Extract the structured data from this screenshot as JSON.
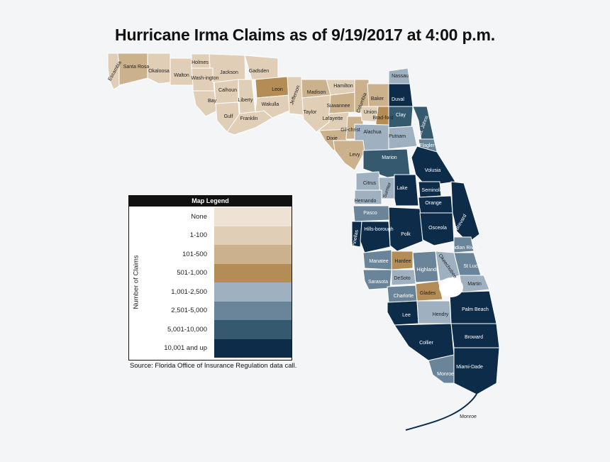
{
  "title": "Hurricane Irma Claims as of 9/19/2017 at 4:00 p.m.",
  "legend": {
    "heading": "Map Legend",
    "axis_label": "Number of Claims",
    "items": [
      {
        "label": "None",
        "color": "#ede2d3"
      },
      {
        "label": "1-100",
        "color": "#e0cfb6"
      },
      {
        "label": "101-500",
        "color": "#ccb28c"
      },
      {
        "label": "501-1,000",
        "color": "#b38c56"
      },
      {
        "label": "1,001-2,500",
        "color": "#9fb1c1"
      },
      {
        "label": "2,501-5,000",
        "color": "#6a8599"
      },
      {
        "label": "5,001-10,000",
        "color": "#355a70"
      },
      {
        "label": "10,001 and up",
        "color": "#0d2c4a"
      }
    ]
  },
  "source": "Source: Florida Office of Insurance Regulation data call.",
  "counties": [
    {
      "name": "Escambia",
      "category": "1-100"
    },
    {
      "name": "Santa Rosa",
      "category": "101-500"
    },
    {
      "name": "Okaloosa",
      "category": "1-100"
    },
    {
      "name": "Walton",
      "category": "1-100"
    },
    {
      "name": "Holmes",
      "category": "1-100"
    },
    {
      "name": "Wash-ington",
      "category": "1-100"
    },
    {
      "name": "Jackson",
      "category": "1-100"
    },
    {
      "name": "Bay",
      "category": "1-100"
    },
    {
      "name": "Calhoun",
      "category": "1-100"
    },
    {
      "name": "Gulf",
      "category": "1-100"
    },
    {
      "name": "Liberty",
      "category": "1-100"
    },
    {
      "name": "Franklin",
      "category": "1-100"
    },
    {
      "name": "Gadsden",
      "category": "1-100"
    },
    {
      "name": "Leon",
      "category": "501-1,000"
    },
    {
      "name": "Wakulla",
      "category": "1-100"
    },
    {
      "name": "Jefferson",
      "category": "1-100"
    },
    {
      "name": "Madison",
      "category": "101-500"
    },
    {
      "name": "Taylor",
      "category": "1-100"
    },
    {
      "name": "Hamilton",
      "category": "1-100"
    },
    {
      "name": "Suwannee",
      "category": "101-500"
    },
    {
      "name": "Lafayette",
      "category": "1-100"
    },
    {
      "name": "Dixie",
      "category": "101-500"
    },
    {
      "name": "Columbia",
      "category": "101-500"
    },
    {
      "name": "Gil-christ",
      "category": "101-500"
    },
    {
      "name": "Baker",
      "category": "101-500"
    },
    {
      "name": "Union",
      "category": "1-100"
    },
    {
      "name": "Brad-ford",
      "category": "501-1,000"
    },
    {
      "name": "Alachua",
      "category": "1,001-2,500"
    },
    {
      "name": "Levy",
      "category": "101-500"
    },
    {
      "name": "Nassau",
      "category": "1,001-2,500"
    },
    {
      "name": "Duval",
      "category": "10,001 and up"
    },
    {
      "name": "Clay",
      "category": "5,001-10,000"
    },
    {
      "name": "St. Johns",
      "category": "5,001-10,000"
    },
    {
      "name": "Putnam",
      "category": "1,001-2,500"
    },
    {
      "name": "Flagler",
      "category": "2,501-5,000"
    },
    {
      "name": "Marion",
      "category": "5,001-10,000"
    },
    {
      "name": "Volusia",
      "category": "10,001 and up"
    },
    {
      "name": "Citrus",
      "category": "1,001-2,500"
    },
    {
      "name": "Sumter",
      "category": "1,001-2,500"
    },
    {
      "name": "Lake",
      "category": "10,001 and up"
    },
    {
      "name": "Seminole",
      "category": "10,001 and up"
    },
    {
      "name": "Hernando",
      "category": "1,001-2,500"
    },
    {
      "name": "Orange",
      "category": "10,001 and up"
    },
    {
      "name": "Brevard",
      "category": "10,001 and up"
    },
    {
      "name": "Pasco",
      "category": "2,501-5,000"
    },
    {
      "name": "Pinellas",
      "category": "10,001 and up"
    },
    {
      "name": "Hills-borough",
      "category": "10,001 and up"
    },
    {
      "name": "Polk",
      "category": "10,001 and up"
    },
    {
      "name": "Osceola",
      "category": "10,001 and up"
    },
    {
      "name": "Indian River",
      "category": "2,501-5,000"
    },
    {
      "name": "Manatee",
      "category": "2,501-5,000"
    },
    {
      "name": "Hardee",
      "category": "501-1,000"
    },
    {
      "name": "Highlands",
      "category": "2,501-5,000"
    },
    {
      "name": "Okeechobee",
      "category": "1,001-2,500"
    },
    {
      "name": "St Lucie",
      "category": "2,501-5,000"
    },
    {
      "name": "Sarasota",
      "category": "2,501-5,000"
    },
    {
      "name": "DeSoto",
      "category": "1,001-2,500"
    },
    {
      "name": "Martin",
      "category": "1,001-2,500"
    },
    {
      "name": "Charlotte",
      "category": "2,501-5,000"
    },
    {
      "name": "Glades",
      "category": "501-1,000"
    },
    {
      "name": "Lee",
      "category": "10,001 and up"
    },
    {
      "name": "Hendry",
      "category": "1,001-2,500"
    },
    {
      "name": "Palm Beach",
      "category": "10,001 and up"
    },
    {
      "name": "Broward",
      "category": "10,001 and up"
    },
    {
      "name": "Collier",
      "category": "10,001 and up"
    },
    {
      "name": "Miami-Dade",
      "category": "10,001 and up"
    },
    {
      "name": "Monroe",
      "category": "2,501-5,000"
    }
  ],
  "keys_label": "Monroe"
}
